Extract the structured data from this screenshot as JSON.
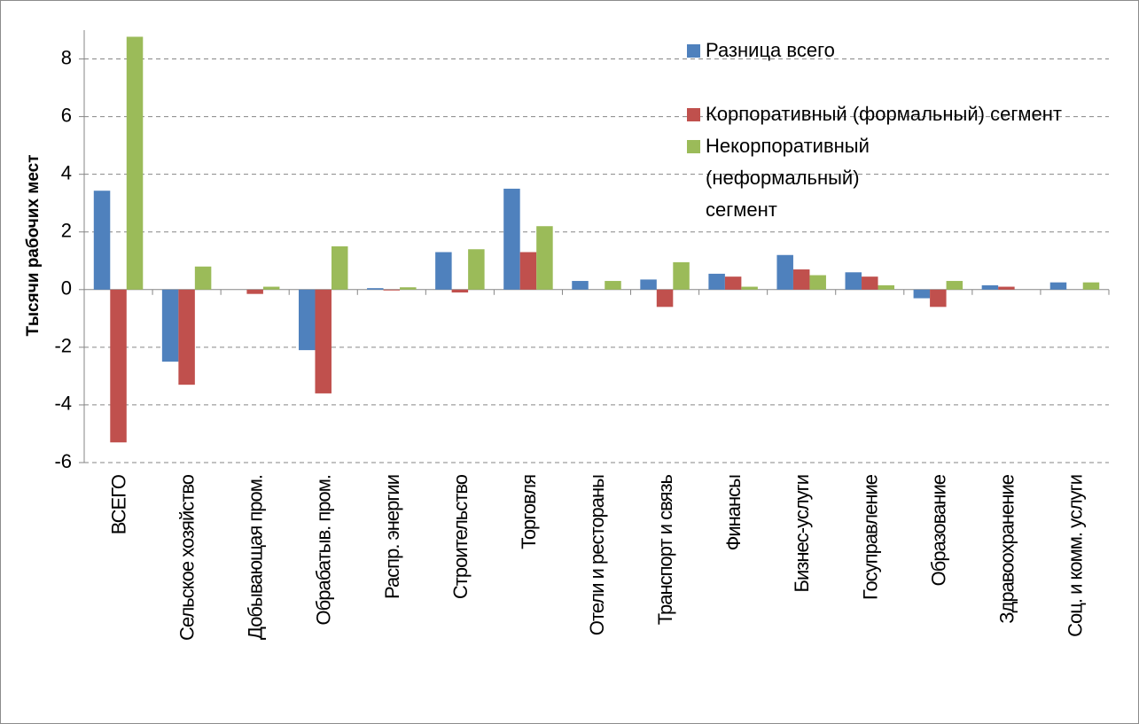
{
  "chart_data": {
    "type": "bar",
    "y_label": "Тысячи рабочих мест",
    "categories": [
      "ВСЕГО",
      "Сельское хозяйство",
      "Добывающая пром.",
      "Обрабатыв. пром.",
      "Распр. энергии",
      "Строительство",
      "Торговля",
      "Отели и рестораны",
      "Транспорт и связь",
      "Финансы",
      "Бизнес-услуги",
      "Госуправление",
      "Образование",
      "Здравоохранение",
      "Соц. и комм. услуги"
    ],
    "series": [
      {
        "name": "Разница всего",
        "color": "#4f81bd",
        "values": [
          3.43,
          -2.5,
          0,
          -2.1,
          0.05,
          1.3,
          3.5,
          0.3,
          0.35,
          0.55,
          1.2,
          0.6,
          -0.3,
          0.15,
          0.25
        ]
      },
      {
        "name": "Корпоративный (формальный) сегмент",
        "color": "#c0504d",
        "values": [
          -5.3,
          -3.3,
          -0.15,
          -3.6,
          -0.03,
          -0.1,
          1.3,
          0,
          -0.6,
          0.45,
          0.7,
          0.45,
          -0.6,
          0.1,
          0
        ]
      },
      {
        "name": "Некорпоративный (неформальный) сегмент",
        "color": "#9bbb59",
        "values": [
          8.77,
          0.8,
          0.1,
          1.5,
          0.08,
          1.4,
          2.2,
          0.3,
          0.95,
          0.1,
          0.5,
          0.15,
          0.3,
          0,
          0.25
        ]
      }
    ],
    "ylim": [
      -6,
      9
    ],
    "yticks": [
      -6,
      -4,
      -2,
      0,
      2,
      4,
      6,
      8
    ],
    "grid": true
  }
}
